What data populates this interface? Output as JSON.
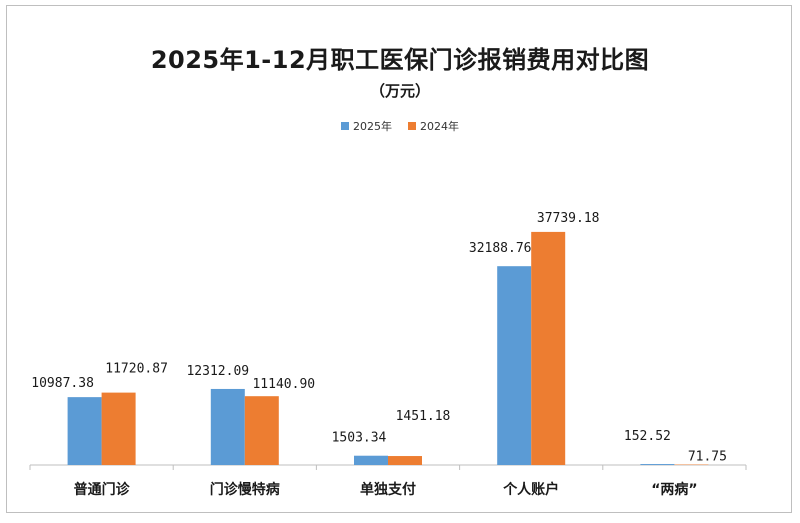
{
  "chart_data": {
    "type": "bar",
    "title": "2025年1-12月职工医保门诊报销费用对比图",
    "subtitle": "（万元）",
    "categories": [
      "普通门诊",
      "门诊慢特病",
      "单独支付",
      "个人账户",
      "“两病”"
    ],
    "series": [
      {
        "name": "2025年",
        "color": "#5b9bd5",
        "values": [
          10987.38,
          12312.09,
          1503.34,
          32188.76,
          152.52
        ],
        "labels": [
          "10987.38",
          "12312.09",
          "1503.34",
          "32188.76",
          "152.52"
        ]
      },
      {
        "name": "2024年",
        "color": "#ed7d31",
        "values": [
          11720.87,
          11140.9,
          1451.18,
          37739.18,
          71.75
        ],
        "labels": [
          "11720.87",
          "11140.90",
          "1451.18",
          "37739.18",
          "71.75"
        ]
      }
    ],
    "ylim": [
      0,
      51000
    ],
    "legend": "top-center",
    "grid": false
  }
}
